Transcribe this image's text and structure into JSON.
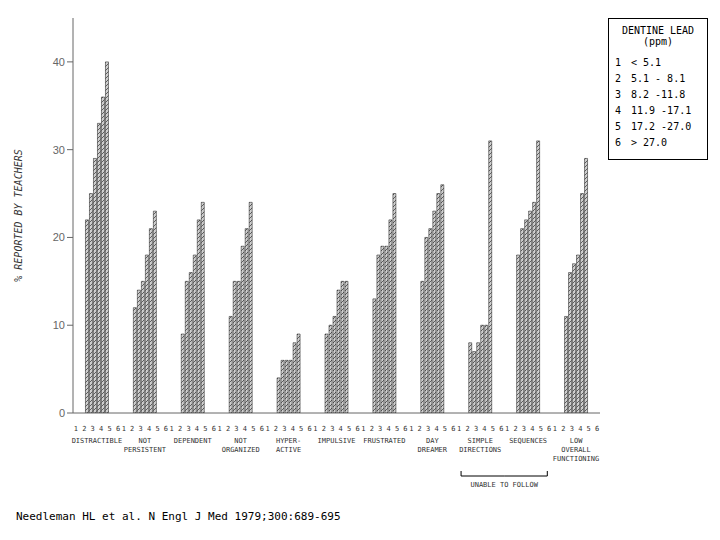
{
  "chart_data": {
    "type": "bar",
    "categories": [
      "DISTRACTIBLE",
      "NOT\nPERSISTENT",
      "DEPENDENT",
      "NOT\nORGANIZED",
      "HYPER-\nACTIVE",
      "IMPULSIVE",
      "FRUSTRATED",
      "DAY\nDREAMER",
      "SIMPLE\nDIRECTIONS",
      "SEQUENCES",
      "LOW\nOVERALL\nFUNCTIONING"
    ],
    "series": [
      {
        "name": "1",
        "legend_label": "< 5.1",
        "values": [
          22,
          12,
          9,
          11,
          4,
          9,
          13,
          15,
          8,
          18,
          11
        ]
      },
      {
        "name": "2",
        "legend_label": "5.1 - 8.1",
        "values": [
          25,
          14,
          15,
          15,
          6,
          10,
          18,
          20,
          7,
          21,
          16
        ]
      },
      {
        "name": "3",
        "legend_label": "8.2 -11.8",
        "values": [
          29,
          15,
          16,
          15,
          6,
          11,
          19,
          21,
          8,
          22,
          17
        ]
      },
      {
        "name": "4",
        "legend_label": "11.9 -17.1",
        "values": [
          33,
          18,
          18,
          19,
          6,
          14,
          19,
          23,
          10,
          23,
          18
        ]
      },
      {
        "name": "5",
        "legend_label": "17.2 -27.0",
        "values": [
          36,
          21,
          22,
          21,
          8,
          15,
          22,
          25,
          10,
          24,
          25
        ]
      },
      {
        "name": "6",
        "legend_label": "> 27.0",
        "values": [
          40,
          23,
          24,
          24,
          9,
          15,
          25,
          26,
          31,
          31,
          29
        ]
      }
    ],
    "color": "#d0d0d0",
    "y_label": "% REPORTED BY TEACHERS",
    "ylim": [
      0,
      45
    ],
    "yticks": [
      0,
      10,
      20,
      30,
      40
    ],
    "grid": false,
    "legend": "right",
    "legend_title": "DENTINE LEAD\n(ppm)",
    "x_sublabel": "1 2 3 4 5 6",
    "annotations": [
      {
        "text": "UNABLE TO FOLLOW",
        "categories": [
          "SIMPLE\nDIRECTIONS",
          "SEQUENCES"
        ]
      }
    ],
    "caption": "Needleman HL et al. N Engl J Med 1979;300:689-695"
  }
}
